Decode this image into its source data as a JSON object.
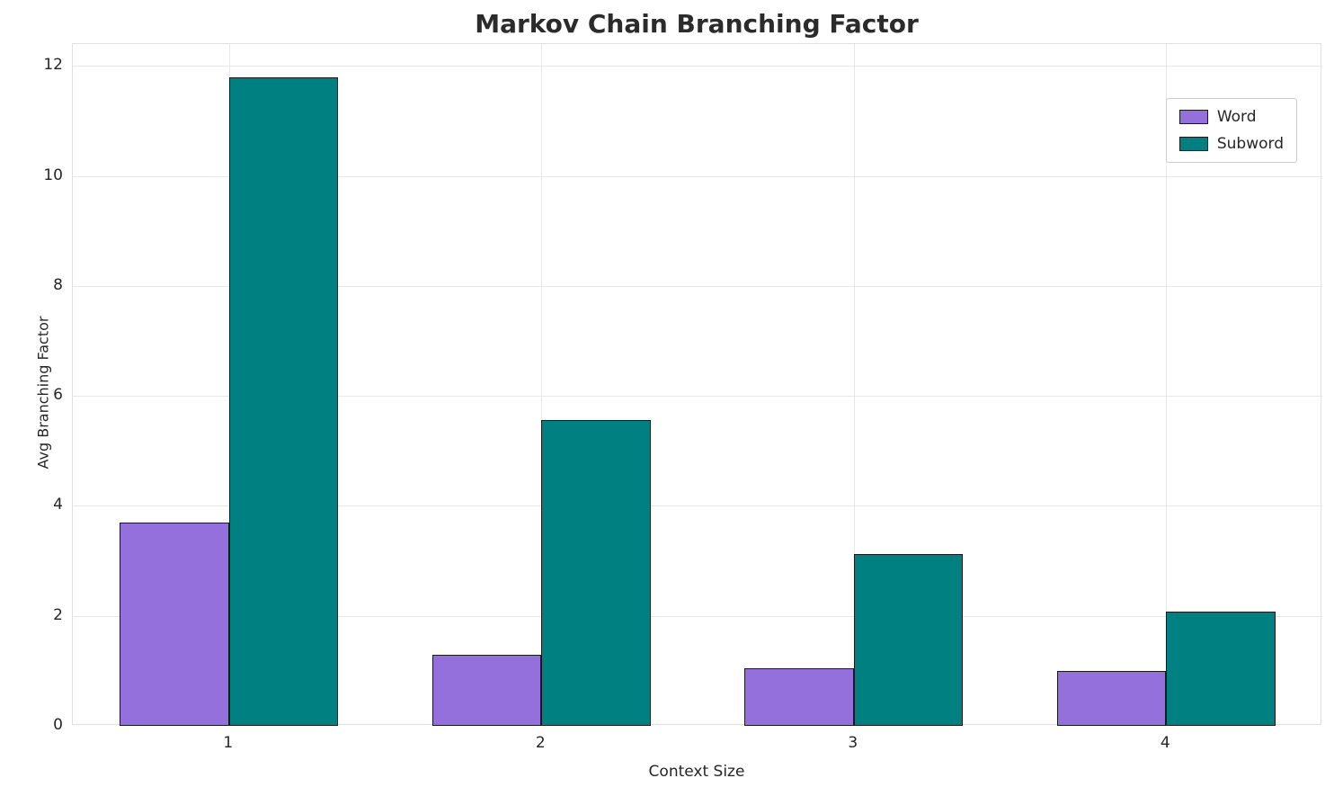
{
  "title": "Markov Chain Branching Factor",
  "chart_data": {
    "type": "bar",
    "categories": [
      "1",
      "2",
      "3",
      "4"
    ],
    "series": [
      {
        "name": "Word",
        "color": "#9370DB",
        "values": [
          3.7,
          1.3,
          1.05,
          1.0
        ]
      },
      {
        "name": "Subword",
        "color": "#008080",
        "values": [
          11.8,
          5.57,
          3.12,
          2.08
        ]
      }
    ],
    "title": "Markov Chain Branching Factor",
    "xlabel": "Context Size",
    "ylabel": "Avg Branching Factor",
    "ylim": [
      0,
      12.4
    ],
    "yticks": [
      0,
      2,
      4,
      6,
      8,
      10,
      12
    ],
    "grid": true,
    "legend_position": "upper right",
    "bar_edge_color": "#1a1a1a",
    "bar_width_fraction": 0.35
  }
}
